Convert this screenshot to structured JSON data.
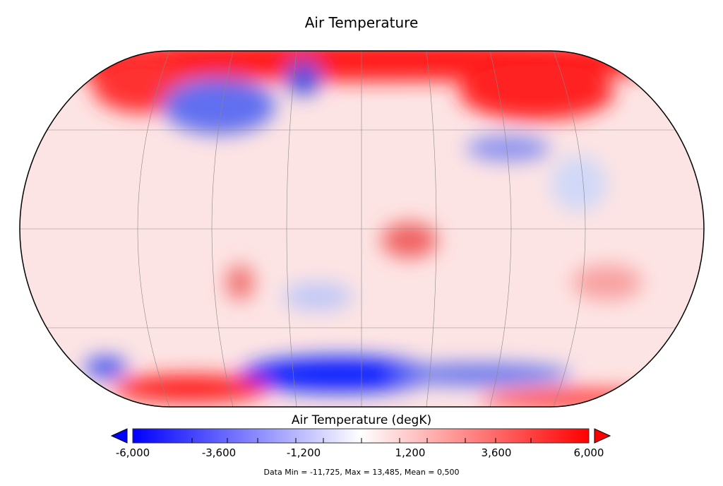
{
  "title": "Air Temperature",
  "map": {
    "projection": "Robinson",
    "colormap": "blue-white-red",
    "warm_regions": [
      "Arctic",
      "Siberia",
      "Antarctic Peninsula / Weddell Sea",
      "East Africa",
      "Australia"
    ],
    "cold_regions": [
      "Canada",
      "Greenland",
      "Antarctica (Indian Ocean sector)",
      "Central Asia"
    ]
  },
  "colorbar": {
    "title": "Air Temperature (degK)",
    "min": -6000,
    "max": 6000,
    "ticks": [
      "-6,000",
      "-3,600",
      "-1,200",
      "1,200",
      "3,600",
      "6,000"
    ],
    "colors": {
      "low": "#0000ff",
      "mid": "#ffffff",
      "high": "#ff0000"
    }
  },
  "footer": "Data Min = -11,725, Max = 13,485, Mean = 0,500"
}
